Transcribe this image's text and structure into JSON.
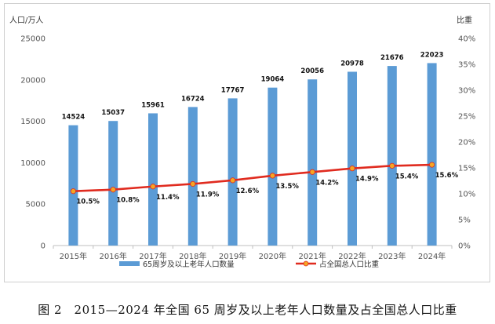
{
  "chart_data": {
    "type": "bar+line",
    "categories": [
      "2015年",
      "2016年",
      "2017年",
      "2018年",
      "2019年",
      "2020年",
      "2021年",
      "2022年",
      "2023年",
      "2024年"
    ],
    "series": [
      {
        "name": "65周岁及以上老年人口数量",
        "type": "bar",
        "axis": "left",
        "color": "#5b9bd5",
        "values": [
          14524,
          15037,
          15961,
          16724,
          17767,
          19064,
          20056,
          20978,
          21676,
          22023
        ],
        "labels": [
          "14524",
          "15037",
          "15961",
          "16724",
          "17767",
          "19064",
          "20056",
          "20978",
          "21676",
          "22023"
        ]
      },
      {
        "name": "占全国总人口比重",
        "type": "line",
        "axis": "right",
        "color": "#e02b1f",
        "marker_color": "#f5a623",
        "values": [
          10.5,
          10.8,
          11.4,
          11.9,
          12.6,
          13.5,
          14.2,
          14.9,
          15.4,
          15.6
        ],
        "labels": [
          "10.5%",
          "10.8%",
          "11.4%",
          "11.9%",
          "12.6%",
          "13.5%",
          "14.2%",
          "14.9%",
          "15.4%",
          "15.6%"
        ]
      }
    ],
    "y_left": {
      "label": "人口/万人",
      "range": [
        0,
        25000
      ],
      "ticks": [
        0,
        5000,
        10000,
        15000,
        20000,
        25000
      ],
      "tick_labels": [
        "0",
        "5000",
        "10000",
        "15000",
        "20000",
        "25000"
      ]
    },
    "y_right": {
      "label": "比重",
      "range": [
        0,
        40
      ],
      "ticks": [
        0,
        5,
        10,
        15,
        20,
        25,
        30,
        35,
        40
      ],
      "tick_labels": [
        "0%",
        "5%",
        "10%",
        "15%",
        "20%",
        "25%",
        "30%",
        "35%",
        "40%"
      ]
    },
    "legend_position": "bottom",
    "grid": false
  },
  "caption": "图 2　2015—2024 年全国 65 周岁及以上老年人口数量及占全国总人口比重"
}
